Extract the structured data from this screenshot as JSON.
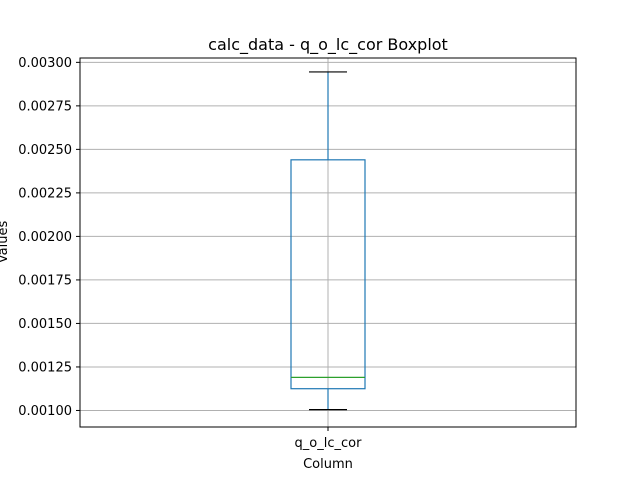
{
  "chart_data": {
    "type": "boxplot",
    "title": "calc_data - q_o_lc_cor Boxplot",
    "xlabel": "Column",
    "ylabel": "Values",
    "categories": [
      "q_o_lc_cor"
    ],
    "ylim": [
      0.000905,
      0.003025
    ],
    "yticks": [
      "0.00100",
      "0.00125",
      "0.00150",
      "0.00175",
      "0.00200",
      "0.00225",
      "0.00250",
      "0.00275",
      "0.00300"
    ],
    "grid": true,
    "boxes": [
      {
        "category": "q_o_lc_cor",
        "whisker_low": 0.001005,
        "q1": 0.001125,
        "median": 0.00119,
        "q3": 0.00244,
        "whisker_high": 0.002945
      }
    ],
    "colors": {
      "box": "#1f77b4",
      "median": "#2ca02c",
      "whisker_cap": "#000000",
      "grid": "#b0b0b0"
    }
  }
}
